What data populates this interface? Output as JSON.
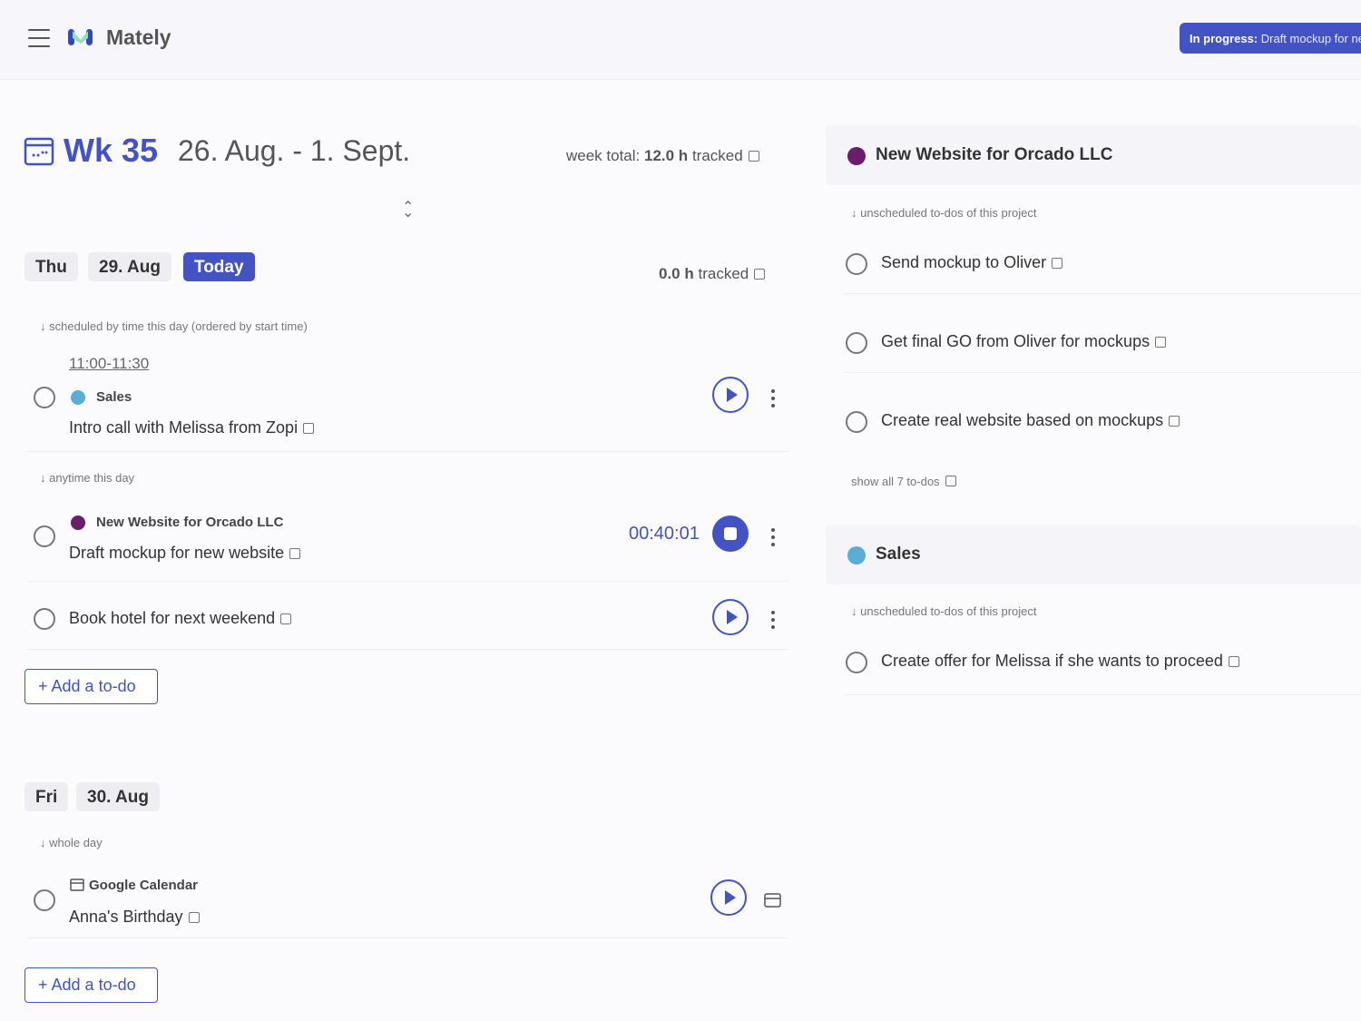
{
  "header": {
    "app_name": "Mately",
    "in_progress_label": "In progress:",
    "in_progress_task": "Draft mockup for new website"
  },
  "week": {
    "number": "Wk 35",
    "range": "26. Aug. - 1. Sept.",
    "total_label": "week total:",
    "total_value": "12.0 h",
    "tracked": "tracked"
  },
  "days": [
    {
      "weekday": "Thu",
      "date": "29. Aug",
      "today": "Today",
      "tracked_value": "0.0 h",
      "tracked": "tracked",
      "sec_scheduled": "scheduled by time this day (ordered by start time)",
      "sec_anytime": "anytime this day",
      "tasks": [
        {
          "time": "11:00-11:30",
          "project": "Sales",
          "title": "Intro call with Melissa from Zopi"
        },
        {
          "project": "New Website for Orcado LLC",
          "title": "Draft mockup for new website",
          "timer": "00:40:01"
        },
        {
          "title": "Book hotel for next weekend"
        }
      ],
      "add": "Add a to-do"
    },
    {
      "weekday": "Fri",
      "date": "30. Aug",
      "sec_whole": "whole day",
      "tasks": [
        {
          "project": "Google Calendar",
          "title": "Anna's Birthday"
        }
      ],
      "add": "Add a to-do"
    }
  ],
  "projects": [
    {
      "name": "New Website for Orcado LLC",
      "color": "#6b1d6b",
      "sec": "unscheduled to-dos of this project",
      "todos": [
        "Send mockup to Oliver",
        "Get final GO from Oliver for mockups",
        "Create real website based on mockups"
      ],
      "show_all": "show all 7 to-dos"
    },
    {
      "name": "Sales",
      "color": "#5aaed6",
      "sec": "unscheduled to-dos of this project",
      "todos": [
        "Create offer for Melissa if she wants to proceed"
      ]
    }
  ],
  "colors": {
    "accent": "#4353c4"
  }
}
